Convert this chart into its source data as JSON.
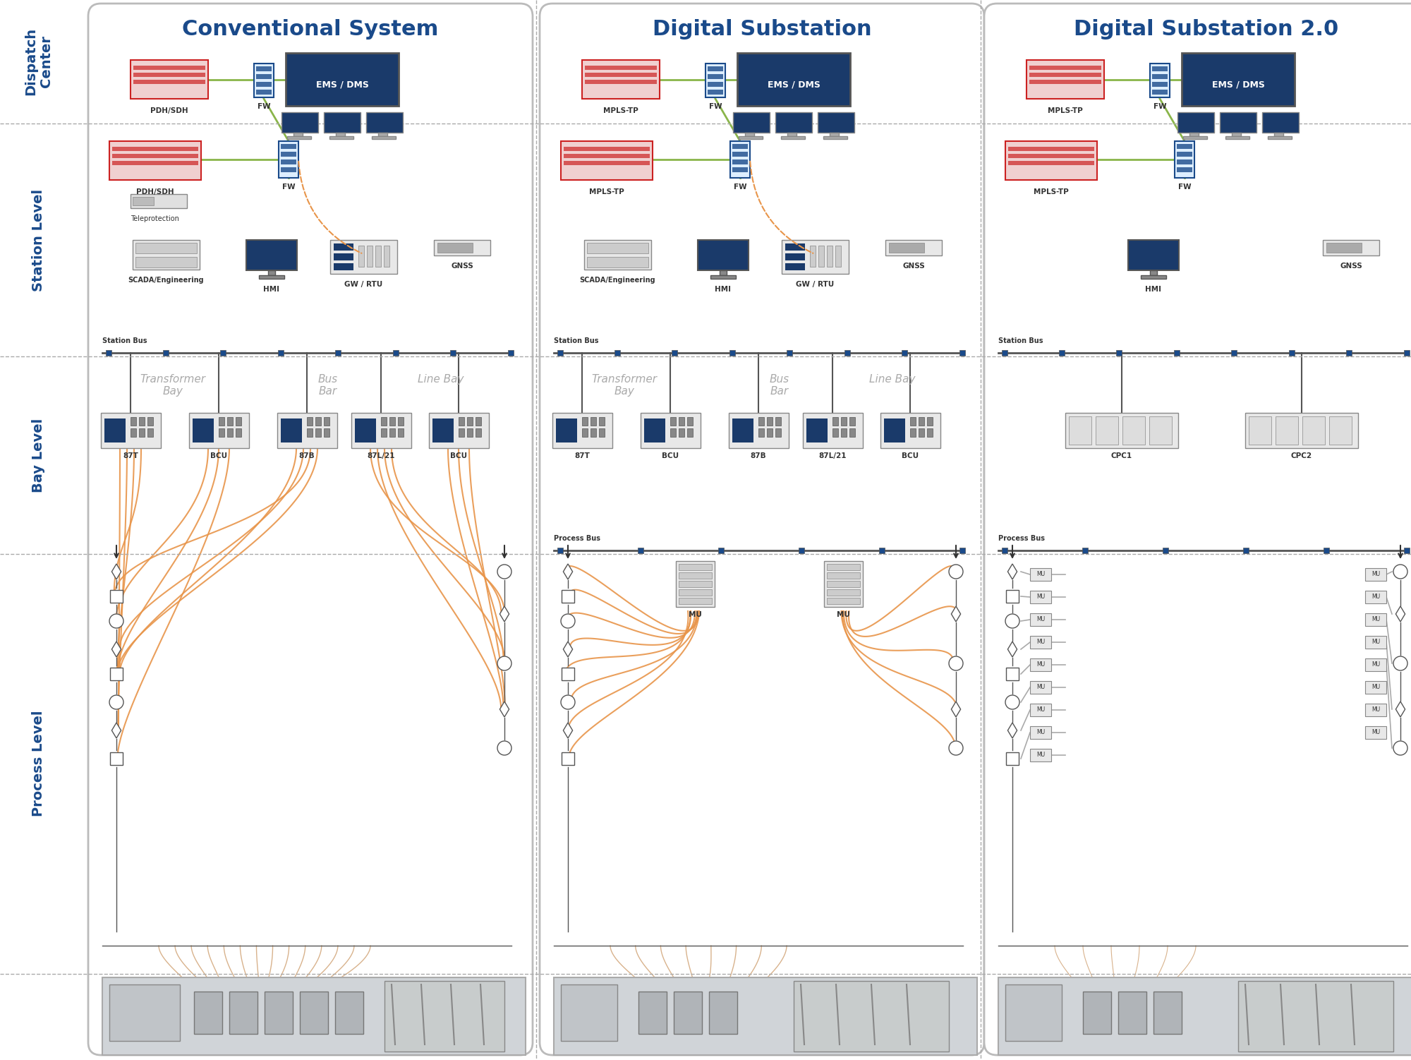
{
  "bg_color": "#ffffff",
  "border_color": "#cccccc",
  "title_color": "#1a4a8a",
  "label_color": "#1a4a8a",
  "orange_wire": "#e8954a",
  "gray_wire": "#aaaaaa",
  "dark_blue": "#1a3a6a",
  "green_line": "#8ab54a",
  "dashed_orange": "#e8954a",
  "col_titles": [
    "Conventional System",
    "Digital Substation",
    "Digital Substation 2.0"
  ],
  "row_labels": [
    "Dispatch\nCenter",
    "Station Level",
    "Bay Level",
    "Process Level"
  ],
  "section_bg": "#f5f8ff",
  "device_outline": "#cccccc",
  "device_fill": "#f0f0f0",
  "monitor_fill": "#1a3a6a",
  "label_gray": "#aaaaaa",
  "col_divider": "#cccccc"
}
